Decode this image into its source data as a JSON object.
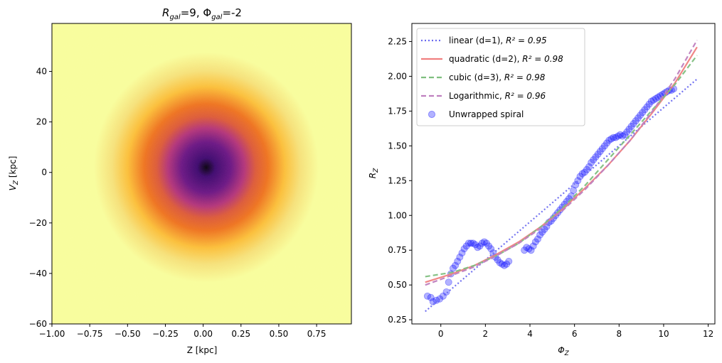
{
  "chart_data": [
    {
      "type": "heatmap",
      "title": "R_gal=9, Φ_gal=-2",
      "title_parts": {
        "r": "R",
        "r_sub": "gal",
        "r_val": "=9, ",
        "phi": "Φ",
        "phi_sub": "gal",
        "phi_val": "=-2"
      },
      "xlabel": "Z [kpc]",
      "ylabel": "V_Z [kpc]",
      "ylabel_parts": {
        "main": "V",
        "sub": "Z",
        "rest": " [kpc]"
      },
      "xlim": [
        -1.0,
        0.98
      ],
      "ylim": [
        -60,
        59
      ],
      "xticks": [
        -1.0,
        -0.75,
        -0.5,
        -0.25,
        0.0,
        0.25,
        0.5,
        0.75
      ],
      "xtick_labels": [
        "−1.00",
        "−0.75",
        "−0.50",
        "−0.25",
        "0.00",
        "0.25",
        "0.50",
        "0.75"
      ],
      "yticks": [
        -60,
        -40,
        -20,
        0,
        20,
        40
      ],
      "ytick_labels": [
        "−60",
        "−40",
        "−20",
        "0",
        "20",
        "40"
      ],
      "colormap": "inferno_r",
      "center": [
        0.02,
        2
      ],
      "colors": {
        "background": "#f8fd9c",
        "ring_outer": "#fbbf3a",
        "ring_mid": "#ee7320",
        "core": "#3f0a6f",
        "center": "#0a0310"
      }
    },
    {
      "type": "scatter",
      "xlabel": "Φ_Z",
      "ylabel": "R_Z",
      "xlabel_parts": {
        "main": "Φ",
        "sub": "Z"
      },
      "ylabel_parts": {
        "main": "R",
        "sub": "Z"
      },
      "xlim": [
        -1.3,
        12.3
      ],
      "ylim": [
        0.22,
        2.38
      ],
      "xticks": [
        0,
        2,
        4,
        6,
        8,
        10,
        12
      ],
      "xtick_labels": [
        "0",
        "2",
        "4",
        "6",
        "8",
        "10",
        "12"
      ],
      "yticks": [
        0.25,
        0.5,
        0.75,
        1.0,
        1.25,
        1.5,
        1.75,
        2.0,
        2.25
      ],
      "ytick_labels": [
        "0.25",
        "0.50",
        "0.75",
        "1.00",
        "1.25",
        "1.50",
        "1.75",
        "2.00",
        "2.25"
      ],
      "legend_position": "top-left",
      "series": [
        {
          "name": "linear (d=1), ",
          "r2_label": "R² = 0.95",
          "kind": "line",
          "style": "dotted",
          "color": "#6b6bf0",
          "x": [
            -0.7,
            11.5
          ],
          "y": [
            0.31,
            1.98
          ]
        },
        {
          "name": "quadratic (d=2), ",
          "r2_label": "R² = 0.98",
          "kind": "line",
          "style": "solid",
          "color": "#f07f7f",
          "x": [
            -0.7,
            0.5,
            1.5,
            2.5,
            3.5,
            4.5,
            5.5,
            6.5,
            7.5,
            8.5,
            9.5,
            10.5,
            11.5
          ],
          "y": [
            0.52,
            0.58,
            0.64,
            0.72,
            0.81,
            0.92,
            1.05,
            1.2,
            1.36,
            1.54,
            1.74,
            1.95,
            2.21
          ]
        },
        {
          "name": "cubic (d=3), ",
          "r2_label": "R² = 0.98",
          "kind": "line",
          "style": "dashed",
          "color": "#7fbf7f",
          "x": [
            -0.7,
            0.5,
            1.5,
            2.5,
            3.5,
            4.5,
            5.5,
            6.5,
            7.5,
            8.5,
            9.5,
            10.5,
            11.5
          ],
          "y": [
            0.56,
            0.59,
            0.64,
            0.71,
            0.8,
            0.92,
            1.06,
            1.22,
            1.4,
            1.58,
            1.76,
            1.94,
            2.15
          ]
        },
        {
          "name": "Logarithmic, ",
          "r2_label": "R² = 0.96",
          "kind": "line",
          "style": "dashed",
          "color": "#bf7fbf",
          "x": [
            -0.7,
            0.5,
            1.5,
            2.5,
            3.5,
            4.5,
            5.5,
            6.5,
            7.5,
            8.5,
            9.5,
            10.5,
            11.5
          ],
          "y": [
            0.5,
            0.57,
            0.63,
            0.71,
            0.8,
            0.91,
            1.04,
            1.19,
            1.36,
            1.54,
            1.75,
            1.98,
            2.26
          ]
        },
        {
          "name": "Unwrapped spiral",
          "kind": "scatter",
          "color": "#0000ff",
          "x": [
            -0.6,
            -0.45,
            -0.35,
            -0.2,
            -0.05,
            0.1,
            0.25,
            0.35,
            0.45,
            0.55,
            0.65,
            0.75,
            0.85,
            0.95,
            1.05,
            1.15,
            1.25,
            1.35,
            1.45,
            1.55,
            1.65,
            1.75,
            1.85,
            1.95,
            2.05,
            2.15,
            2.25,
            2.35,
            2.45,
            2.55,
            2.65,
            2.75,
            2.85,
            2.95,
            3.05,
            3.75,
            3.85,
            3.95,
            4.05,
            4.15,
            4.25,
            4.35,
            4.45,
            4.55,
            4.65,
            4.75,
            4.85,
            4.95,
            5.05,
            5.15,
            5.25,
            5.35,
            5.45,
            5.55,
            5.65,
            5.75,
            5.85,
            5.95,
            6.05,
            6.15,
            6.25,
            6.35,
            6.45,
            6.55,
            6.65,
            6.75,
            6.85,
            6.95,
            7.05,
            7.15,
            7.25,
            7.35,
            7.45,
            7.55,
            7.65,
            7.75,
            7.85,
            7.95,
            8.05,
            8.15,
            8.25,
            8.35,
            8.45,
            8.55,
            8.65,
            8.75,
            8.85,
            8.95,
            9.05,
            9.15,
            9.25,
            9.35,
            9.45,
            9.55,
            9.65,
            9.75,
            9.85,
            9.95,
            10.05,
            10.15,
            10.25,
            10.35,
            10.45
          ],
          "y": [
            0.42,
            0.41,
            0.38,
            0.39,
            0.4,
            0.42,
            0.45,
            0.52,
            0.58,
            0.62,
            0.64,
            0.67,
            0.7,
            0.73,
            0.76,
            0.78,
            0.8,
            0.8,
            0.8,
            0.79,
            0.77,
            0.78,
            0.8,
            0.81,
            0.8,
            0.78,
            0.76,
            0.73,
            0.7,
            0.68,
            0.66,
            0.65,
            0.64,
            0.65,
            0.67,
            0.75,
            0.77,
            0.76,
            0.75,
            0.78,
            0.81,
            0.83,
            0.86,
            0.88,
            0.9,
            0.92,
            0.95,
            0.96,
            0.98,
            1.0,
            1.02,
            1.04,
            1.06,
            1.08,
            1.1,
            1.12,
            1.14,
            1.18,
            1.22,
            1.25,
            1.28,
            1.3,
            1.31,
            1.33,
            1.35,
            1.38,
            1.4,
            1.42,
            1.44,
            1.46,
            1.48,
            1.5,
            1.52,
            1.54,
            1.55,
            1.56,
            1.56,
            1.57,
            1.58,
            1.57,
            1.58,
            1.6,
            1.62,
            1.64,
            1.66,
            1.68,
            1.7,
            1.72,
            1.74,
            1.76,
            1.78,
            1.8,
            1.82,
            1.83,
            1.84,
            1.85,
            1.86,
            1.87,
            1.88,
            1.89,
            1.9,
            1.9,
            1.91
          ]
        }
      ]
    }
  ]
}
